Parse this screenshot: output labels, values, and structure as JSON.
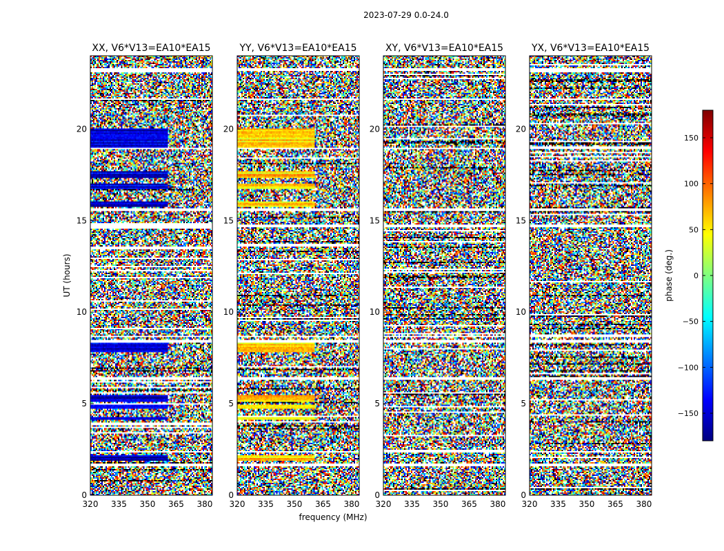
{
  "chart_data": {
    "type": "heatmap",
    "title": "2023-07-29 0.0-24.0",
    "xlabel": "frequency (MHz)",
    "ylabel": "UT (hours)",
    "xlim": [
      320,
      384
    ],
    "ylim": [
      0,
      24
    ],
    "x_ticks": [
      320,
      335,
      350,
      365,
      380
    ],
    "y_ticks": [
      0,
      5,
      10,
      15,
      20
    ],
    "panels": [
      {
        "title": "XX, V6*V13=EA10*EA15",
        "polarization": "XX",
        "phase_coherent": true,
        "base_phase": -150
      },
      {
        "title": "YY, V6*V13=EA10*EA15",
        "polarization": "YY",
        "phase_coherent": true,
        "base_phase": 60
      },
      {
        "title": "XY, V6*V13=EA10*EA15",
        "polarization": "XY",
        "phase_coherent": false,
        "base_phase": 0
      },
      {
        "title": "YX, V6*V13=EA10*EA15",
        "polarization": "YX",
        "phase_coherent": false,
        "base_phase": 0
      }
    ],
    "colorbar": {
      "label": "phase (deg.)",
      "range": [
        -180,
        180
      ],
      "ticks": [
        -150,
        -100,
        -50,
        0,
        50,
        100,
        150
      ],
      "tick_labels": [
        "−150",
        "−100",
        "−50",
        "0",
        "50",
        "100",
        "150"
      ],
      "colormap": [
        "#00007f",
        "#0000ff",
        "#007fff",
        "#00ffff",
        "#7fff7f",
        "#ffff00",
        "#ff7f00",
        "#ff0000",
        "#7f0000"
      ]
    },
    "flagged_ut_ranges": [
      [
        1.55,
        1.7
      ],
      [
        2.3,
        2.4
      ],
      [
        6.3,
        6.45
      ],
      [
        8.35,
        8.45
      ],
      [
        8.6,
        8.7
      ],
      [
        14.6,
        14.75
      ],
      [
        15.5,
        15.7
      ],
      [
        18.9,
        19.0
      ],
      [
        21.6,
        21.7
      ],
      [
        23.2,
        23.3
      ]
    ],
    "coherent_ut_ranges": [
      [
        1.9,
        2.15
      ],
      [
        4.1,
        4.3
      ],
      [
        4.7,
        4.95
      ],
      [
        5.1,
        5.5
      ],
      [
        7.8,
        8.3
      ],
      [
        15.75,
        16.05
      ],
      [
        16.7,
        17.0
      ],
      [
        17.3,
        17.7
      ],
      [
        19.0,
        20.0
      ]
    ]
  }
}
